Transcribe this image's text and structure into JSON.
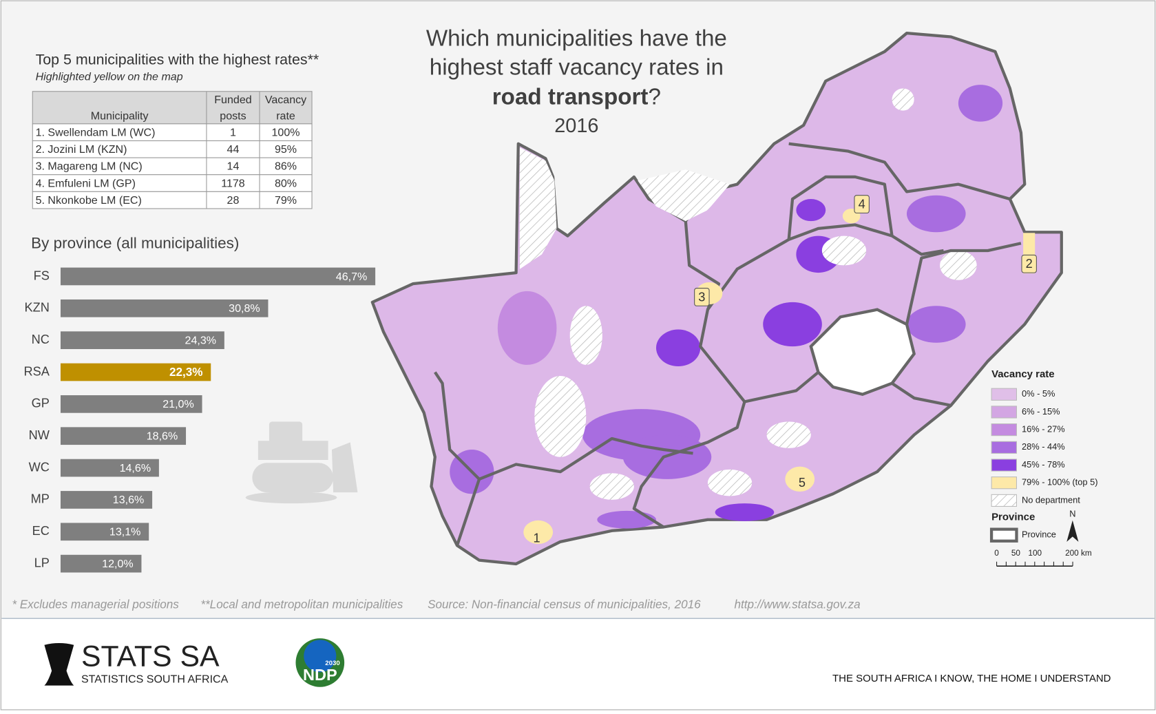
{
  "title": {
    "line1": "Which municipalities have the",
    "line2": "highest staff vacancy rates in",
    "bold": "road transport",
    "suffix": "?",
    "year": "2016"
  },
  "table": {
    "title": "Top 5 municipalities with the highest rates**",
    "subtitle": "Highlighted yellow on the map",
    "header": [
      [
        "Municipality"
      ],
      [
        "Funded",
        "posts"
      ],
      [
        "Vacancy",
        "rate"
      ]
    ],
    "rows": [
      [
        "1. Swellendam LM (WC)",
        "1",
        "100%"
      ],
      [
        "2. Jozini LM (KZN)",
        "44",
        "95%"
      ],
      [
        "3. Magareng LM (NC)",
        "14",
        "86%"
      ],
      [
        "4. Emfuleni LM (GP)",
        "1178",
        "80%"
      ],
      [
        "5. Nkonkobe LM (EC)",
        "28",
        "79%"
      ]
    ]
  },
  "chart_data": {
    "type": "bar",
    "orientation": "horizontal",
    "title": "By province (all municipalities)",
    "categories": [
      "FS",
      "KZN",
      "NC",
      "RSA",
      "GP",
      "NW",
      "WC",
      "MP",
      "EC",
      "LP"
    ],
    "values": [
      46.7,
      30.8,
      24.3,
      22.3,
      21.0,
      18.6,
      14.6,
      13.6,
      13.1,
      12.0
    ],
    "value_labels": [
      "46,7%",
      "30,8%",
      "24,3%",
      "22,3%",
      "21,0%",
      "18,6%",
      "14,6%",
      "13,6%",
      "13,1%",
      "12,0%"
    ],
    "colors": [
      "#7f7f7f",
      "#7f7f7f",
      "#7f7f7f",
      "#bf9000",
      "#7f7f7f",
      "#7f7f7f",
      "#7f7f7f",
      "#7f7f7f",
      "#7f7f7f",
      "#7f7f7f"
    ]
  },
  "map": {
    "markers": [
      "1",
      "2",
      "3",
      "4",
      "5"
    ],
    "legend": {
      "title": "Vacancy rate",
      "items": [
        "0% - 5%",
        "6% - 15%",
        "16% - 27%",
        "28% - 44%",
        "45% - 78%",
        "79% - 100% (top 5)",
        "No department"
      ],
      "colors": [
        "#e0bfe8",
        "#d3a6e3",
        "#c48be0",
        "#a86de0",
        "#8a3fe0",
        "#fde9a8",
        "hatch"
      ],
      "province_title": "Province",
      "province_item": "Province"
    },
    "north": "N",
    "scale": [
      "0",
      "50",
      "100",
      "200 km"
    ]
  },
  "footnotes": [
    "* Excludes managerial positions",
    "**Local and metropolitan municipalities",
    "Source: Non-financial census of municipalities, 2016",
    "http://www.statsa.gov.za"
  ],
  "footer": {
    "logo": "STATS SA",
    "logo_sub": "STATISTICS SOUTH AFRICA",
    "ndp": "NDP",
    "ndp_year": "2030",
    "tagline": "THE SOUTH AFRICA I KNOW, THE HOME I UNDERSTAND"
  }
}
